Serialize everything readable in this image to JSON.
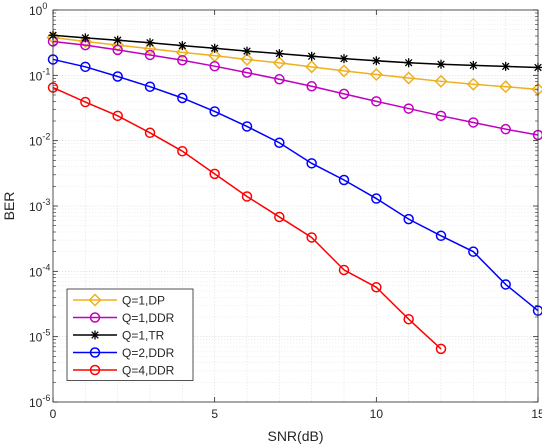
{
  "chart_data": {
    "type": "line",
    "xlabel": "SNR(dB)",
    "ylabel": "BER",
    "xlim": [
      0,
      15
    ],
    "ylim": [
      1e-06,
      1
    ],
    "yscale": "log",
    "grid": true,
    "legend_position": "bottom-left",
    "x_ticks": [
      {
        "value": 0,
        "label": "0"
      },
      {
        "value": 5,
        "label": "5"
      },
      {
        "value": 10,
        "label": "10"
      },
      {
        "value": 15,
        "label": "15"
      }
    ],
    "y_ticks": [
      {
        "value": 1,
        "base": "10",
        "exp": "0"
      },
      {
        "value": 0.1,
        "base": "10",
        "exp": "-1"
      },
      {
        "value": 0.01,
        "base": "10",
        "exp": "-2"
      },
      {
        "value": 0.001,
        "base": "10",
        "exp": "-3"
      },
      {
        "value": 0.0001,
        "base": "10",
        "exp": "-4"
      },
      {
        "value": 1e-05,
        "base": "10",
        "exp": "-5"
      },
      {
        "value": 1e-06,
        "base": "10",
        "exp": "-6"
      }
    ],
    "series": [
      {
        "name": "Q=1,DP",
        "color": "#EDB120",
        "marker": "diamond",
        "x": [
          0,
          1,
          2,
          3,
          4,
          5,
          6,
          7,
          8,
          9,
          10,
          11,
          12,
          13,
          14,
          15
        ],
        "y": [
          0.38,
          0.33,
          0.29,
          0.255,
          0.225,
          0.2,
          0.175,
          0.155,
          0.135,
          0.117,
          0.103,
          0.091,
          0.081,
          0.073,
          0.067,
          0.061
        ]
      },
      {
        "name": "Q=1,DDR",
        "color": "#C000C0",
        "marker": "circle",
        "x": [
          0,
          1,
          2,
          3,
          4,
          5,
          6,
          7,
          8,
          9,
          10,
          11,
          12,
          13,
          14,
          15
        ],
        "y": [
          0.33,
          0.29,
          0.245,
          0.205,
          0.17,
          0.138,
          0.11,
          0.087,
          0.068,
          0.052,
          0.04,
          0.031,
          0.024,
          0.019,
          0.015,
          0.0122
        ]
      },
      {
        "name": "Q=1,TR",
        "color": "#000000",
        "marker": "asterisk",
        "x": [
          0,
          1,
          2,
          3,
          4,
          5,
          6,
          7,
          8,
          9,
          10,
          11,
          12,
          13,
          14,
          15
        ],
        "y": [
          0.41,
          0.375,
          0.345,
          0.315,
          0.285,
          0.26,
          0.235,
          0.215,
          0.196,
          0.18,
          0.167,
          0.156,
          0.148,
          0.142,
          0.137,
          0.132
        ]
      },
      {
        "name": "Q=2,DDR",
        "color": "#0000FF",
        "marker": "circle",
        "x": [
          0,
          1,
          2,
          3,
          4,
          5,
          6,
          7,
          8,
          9,
          10,
          11,
          12,
          13,
          14,
          15
        ],
        "y": [
          0.175,
          0.135,
          0.096,
          0.067,
          0.045,
          0.028,
          0.0165,
          0.0093,
          0.0045,
          0.0025,
          0.0013,
          0.00063,
          0.00035,
          0.0002,
          6.3e-05,
          2.5e-05
        ]
      },
      {
        "name": "Q=4,DDR",
        "color": "#FF0000",
        "marker": "circle",
        "x": [
          0,
          1,
          2,
          3,
          4,
          5,
          6,
          7,
          8,
          9,
          10,
          11,
          12
        ],
        "y": [
          0.065,
          0.039,
          0.024,
          0.0132,
          0.0069,
          0.0031,
          0.0014,
          0.00068,
          0.00033,
          0.000105,
          5.7e-05,
          1.85e-05,
          6.5e-06
        ]
      }
    ]
  }
}
